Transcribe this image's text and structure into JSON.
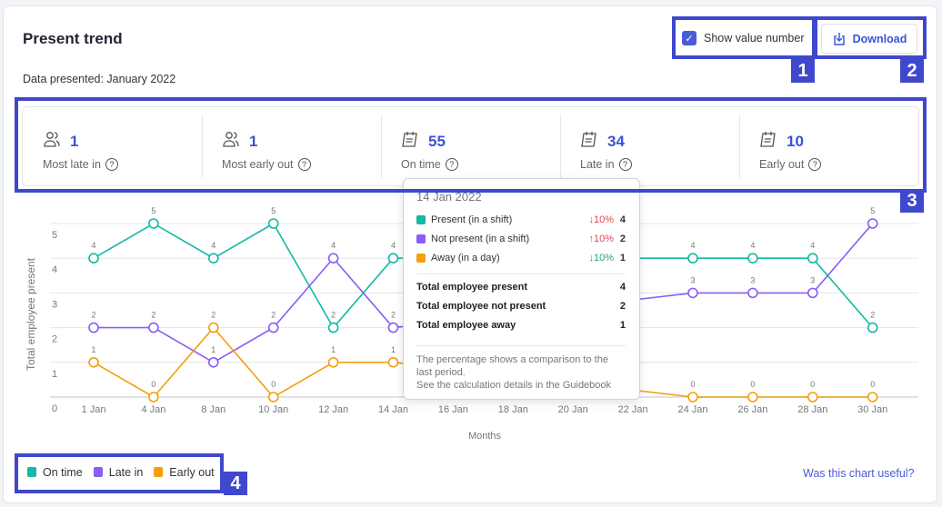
{
  "header": {
    "title": "Present trend",
    "subtitle": "Data presented: January 2022",
    "show_value_label": "Show value number",
    "show_value_checked": true,
    "download_label": "Download"
  },
  "stats": [
    {
      "icon": "users-icon",
      "value": "1",
      "label": "Most late in"
    },
    {
      "icon": "users-icon",
      "value": "1",
      "label": "Most early out"
    },
    {
      "icon": "calendar-icon",
      "value": "55",
      "label": "On time"
    },
    {
      "icon": "calendar-icon",
      "value": "34",
      "label": "Late in"
    },
    {
      "icon": "calendar-icon",
      "value": "10",
      "label": "Early out"
    }
  ],
  "annotations": [
    "1",
    "2",
    "3",
    "4"
  ],
  "colors": {
    "accent": "#3a53d6",
    "on_time": "#14b8a6",
    "late_in": "#8b5cf6",
    "early_out": "#f59e0b"
  },
  "chart_data": {
    "type": "line",
    "ylabel": "Total employee present",
    "xlabel": "Months",
    "ylim": [
      0,
      5
    ],
    "yticks": [
      "0",
      "1",
      "2",
      "3",
      "4",
      "5"
    ],
    "grid": true,
    "categories": [
      "1 Jan",
      "4 Jan",
      "8 Jan",
      "10 Jan",
      "12 Jan",
      "14 Jan",
      "16 Jan",
      "18 Jan",
      "20 Jan",
      "22 Jan",
      "24 Jan",
      "26 Jan",
      "28 Jan",
      "30 Jan"
    ],
    "series": [
      {
        "name": "On time",
        "color": "#14b8a6",
        "values": [
          4,
          5,
          4,
          5,
          2,
          4,
          null,
          null,
          null,
          null,
          4,
          4,
          4,
          2
        ]
      },
      {
        "name": "Late in",
        "color": "#8b5cf6",
        "values": [
          2,
          2,
          1,
          2,
          4,
          2,
          null,
          null,
          null,
          null,
          3,
          3,
          3,
          5
        ]
      },
      {
        "name": "Early out",
        "color": "#f59e0b",
        "values": [
          1,
          0,
          2,
          0,
          1,
          1,
          null,
          null,
          null,
          null,
          0,
          0,
          0,
          0
        ]
      }
    ],
    "legend_placement": "bottom-left"
  },
  "tooltip": {
    "date": "14 Jan 2022",
    "rows": [
      {
        "label": "Present (in a shift)",
        "color": "#14b8a6",
        "pct": "↓10%",
        "pct_color": "#e5484d",
        "value": "4"
      },
      {
        "label": "Not present (in a shift)",
        "color": "#8b5cf6",
        "pct": "↑10%",
        "pct_color": "#e5484d",
        "value": "2"
      },
      {
        "label": "Away (in a day)",
        "color": "#f59e0b",
        "pct": "↓10%",
        "pct_color": "#30a46c",
        "value": "1"
      }
    ],
    "totals": [
      {
        "label": "Total employee present",
        "value": "4"
      },
      {
        "label": "Total employee not present",
        "value": "2"
      },
      {
        "label": "Total employee away",
        "value": "1"
      }
    ],
    "note1": "The percentage shows a comparison to the last period.",
    "note2": "See the calculation details in the Guidebook"
  },
  "legend": [
    {
      "label": "On time",
      "color": "#14b8a6"
    },
    {
      "label": "Late in",
      "color": "#8b5cf6"
    },
    {
      "label": "Early out",
      "color": "#f59e0b"
    }
  ],
  "footer": {
    "feedback_link": "Was this chart useful?"
  }
}
